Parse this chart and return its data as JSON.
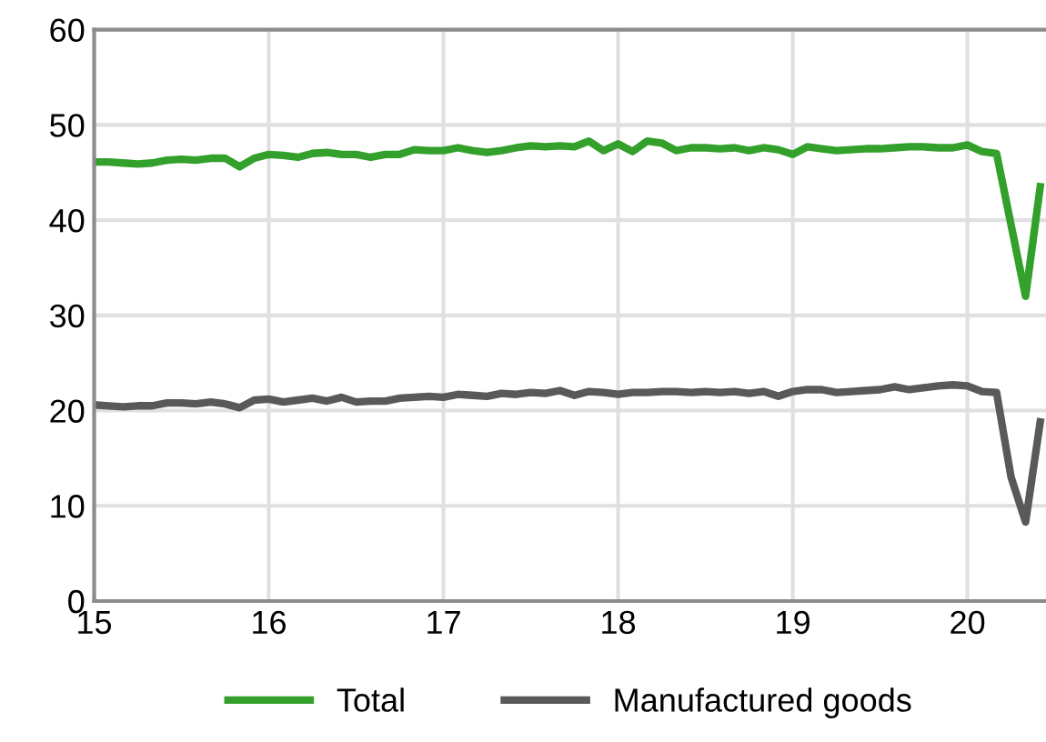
{
  "chart_data": {
    "type": "line",
    "x": [
      15.0,
      15.083,
      15.167,
      15.25,
      15.333,
      15.417,
      15.5,
      15.583,
      15.667,
      15.75,
      15.833,
      15.917,
      16.0,
      16.083,
      16.167,
      16.25,
      16.333,
      16.417,
      16.5,
      16.583,
      16.667,
      16.75,
      16.833,
      16.917,
      17.0,
      17.083,
      17.167,
      17.25,
      17.333,
      17.417,
      17.5,
      17.583,
      17.667,
      17.75,
      17.833,
      17.917,
      18.0,
      18.083,
      18.167,
      18.25,
      18.333,
      18.417,
      18.5,
      18.583,
      18.667,
      18.75,
      18.833,
      18.917,
      19.0,
      19.083,
      19.167,
      19.25,
      19.333,
      19.417,
      19.5,
      19.583,
      19.667,
      19.75,
      19.833,
      19.917,
      20.0,
      20.083,
      20.167,
      20.25,
      20.333,
      20.417
    ],
    "series": [
      {
        "name": "Total",
        "color": "#33a02c",
        "values": [
          46.1,
          46.1,
          46.0,
          45.9,
          46.0,
          46.3,
          46.4,
          46.3,
          46.5,
          46.5,
          45.6,
          46.5,
          46.9,
          46.8,
          46.6,
          47.0,
          47.1,
          46.9,
          46.9,
          46.6,
          46.9,
          46.9,
          47.4,
          47.3,
          47.3,
          47.6,
          47.3,
          47.1,
          47.3,
          47.6,
          47.8,
          47.7,
          47.8,
          47.7,
          48.3,
          47.3,
          48.0,
          47.2,
          48.3,
          48.1,
          47.3,
          47.6,
          47.6,
          47.5,
          47.6,
          47.3,
          47.6,
          47.4,
          46.9,
          47.7,
          47.5,
          47.3,
          47.4,
          47.5,
          47.5,
          47.6,
          47.7,
          47.7,
          47.6,
          47.6,
          47.9,
          47.2,
          47.0,
          39.5,
          32.0,
          43.5
        ]
      },
      {
        "name": "Manufactured goods",
        "color": "#595959",
        "values": [
          20.6,
          20.5,
          20.4,
          20.5,
          20.5,
          20.8,
          20.8,
          20.7,
          20.9,
          20.7,
          20.3,
          21.1,
          21.2,
          20.9,
          21.1,
          21.3,
          21.0,
          21.4,
          20.9,
          21.0,
          21.0,
          21.3,
          21.4,
          21.5,
          21.4,
          21.7,
          21.6,
          21.5,
          21.8,
          21.7,
          21.9,
          21.8,
          22.1,
          21.6,
          22.0,
          21.9,
          21.7,
          21.9,
          21.9,
          22.0,
          22.0,
          21.9,
          22.0,
          21.9,
          22.0,
          21.8,
          22.0,
          21.5,
          22.0,
          22.2,
          22.2,
          21.9,
          22.0,
          22.1,
          22.2,
          22.5,
          22.2,
          22.4,
          22.6,
          22.7,
          22.6,
          22.0,
          21.9,
          13.0,
          8.3,
          18.8
        ]
      }
    ],
    "xlim": [
      15,
      20.45
    ],
    "xticks": [
      15,
      16,
      17,
      18,
      19,
      20
    ],
    "ylim": [
      0,
      60
    ],
    "yticks": [
      0,
      10,
      20,
      30,
      40,
      50,
      60
    ],
    "grid": true,
    "legend": "bottom",
    "marker": "none",
    "line_style": "solid"
  }
}
